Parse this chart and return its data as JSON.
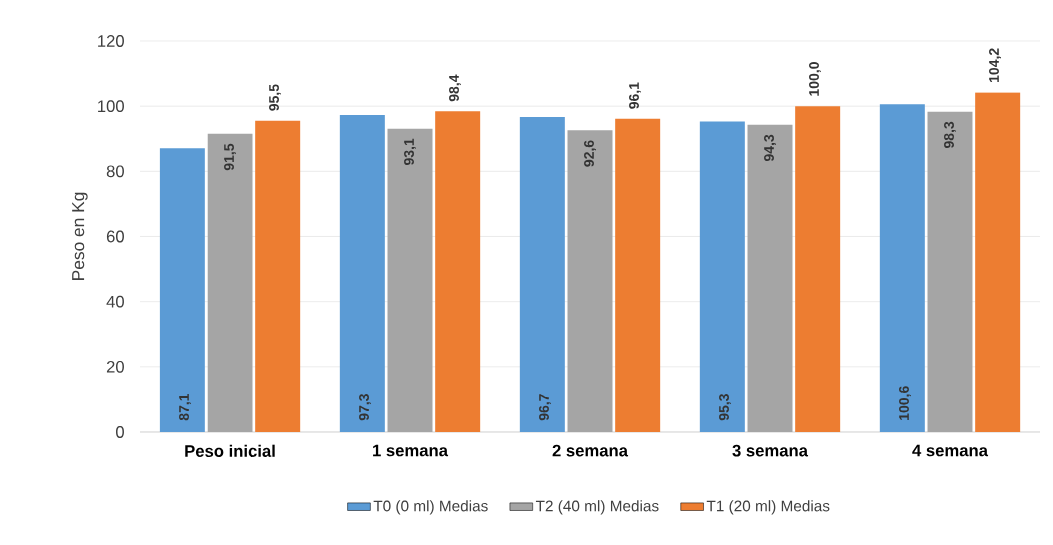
{
  "chart_data": {
    "type": "bar",
    "ylabel": "Peso en Kg",
    "categories": [
      "Peso inicial",
      "1 semana",
      "2 semana",
      "3 semana",
      "4 semana"
    ],
    "series": [
      {
        "name": "T0 (0 ml) Medias",
        "color": "#5b9bd5",
        "values": [
          87.1,
          97.3,
          96.7,
          95.3,
          100.6
        ],
        "value_labels": [
          "87,1",
          "97,3",
          "96,7",
          "95,3",
          "100,6"
        ]
      },
      {
        "name": "T2 (40 ml) Medias",
        "color": "#a5a5a5",
        "values": [
          91.5,
          93.1,
          92.6,
          94.3,
          98.3
        ],
        "value_labels": [
          "91,5",
          "93,1",
          "92,6",
          "94,3",
          "98,3"
        ]
      },
      {
        "name": "T1 (20 ml) Medias",
        "color": "#ed7d31",
        "values": [
          95.5,
          98.4,
          96.1,
          100.0,
          104.2
        ],
        "value_labels": [
          "95,5",
          "98,4",
          "96,1",
          "100,0",
          "104,2"
        ]
      }
    ],
    "ylim": [
      0,
      120
    ],
    "yticks": [
      0,
      20,
      40,
      60,
      80,
      100,
      120
    ],
    "grid": "y",
    "legend": "bottom"
  }
}
